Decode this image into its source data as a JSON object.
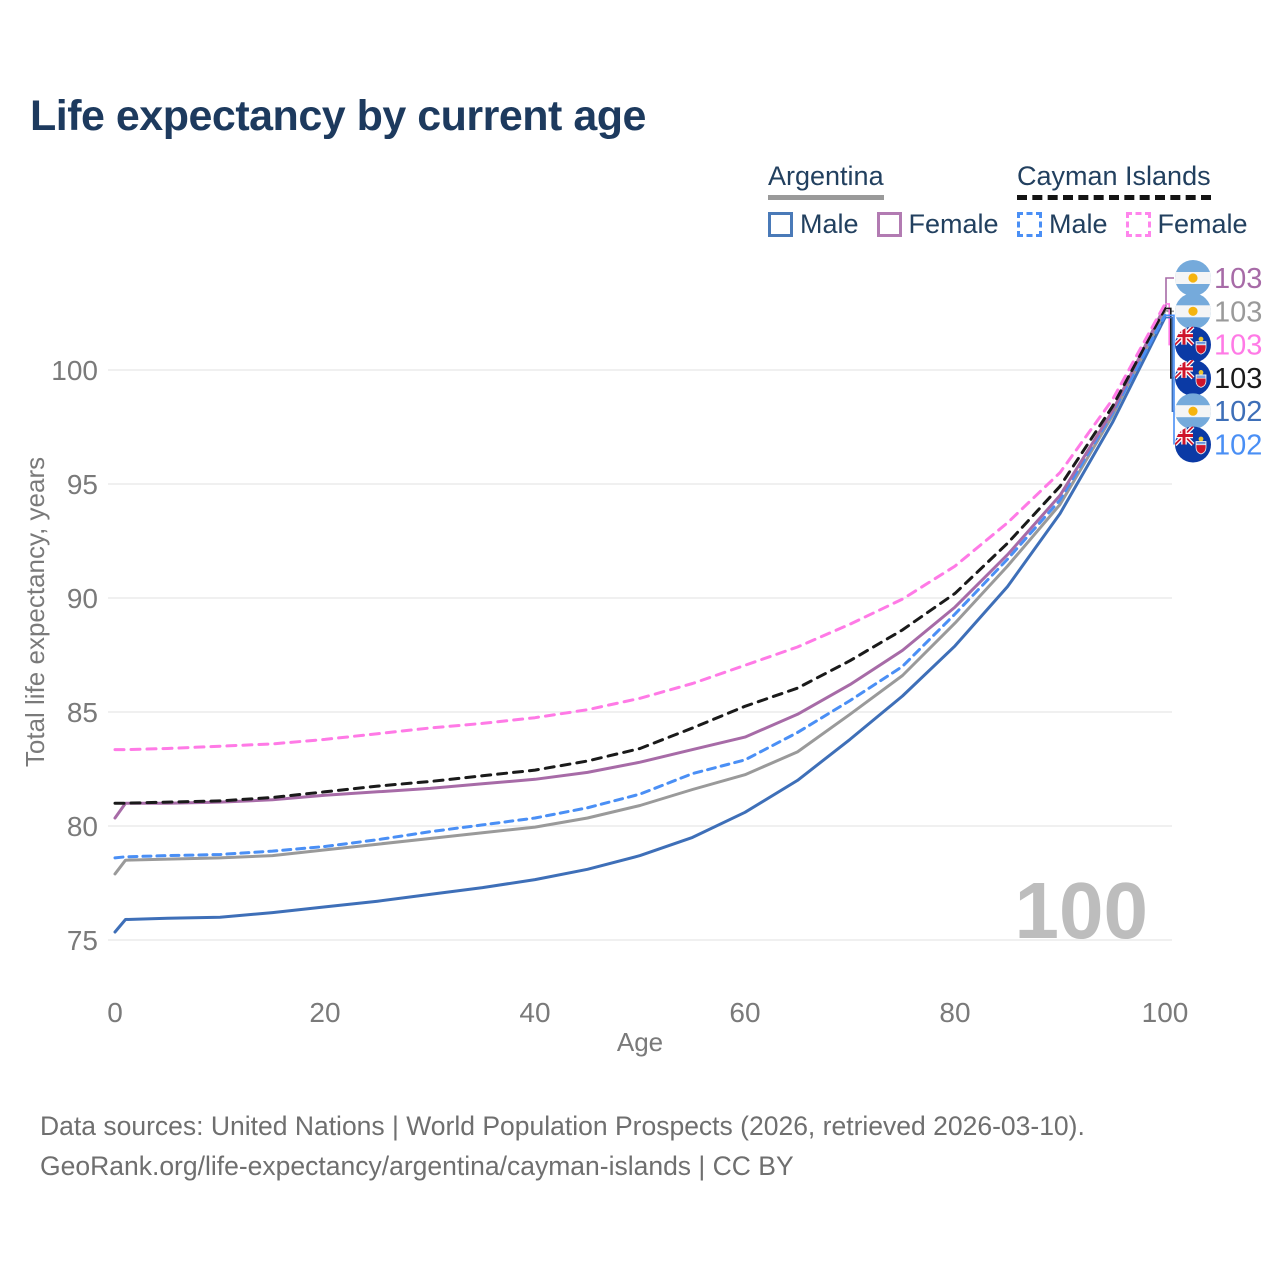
{
  "title": "Life expectancy by current age",
  "watermark_age": "100",
  "legend": {
    "groups": [
      {
        "id": "argentina",
        "name": "Argentina",
        "underline_color": "#9a9a9a",
        "underline_dash": false,
        "items": [
          {
            "id": "male",
            "label": "Male",
            "color": "#4a7ab8",
            "dash": false
          },
          {
            "id": "female",
            "label": "Female",
            "color": "#b27bb2",
            "dash": false
          }
        ]
      },
      {
        "id": "cayman-islands",
        "name": "Cayman Islands",
        "underline_color": "#141414",
        "underline_dash": true,
        "items": [
          {
            "id": "male",
            "label": "Male",
            "color": "#4a8ff5",
            "dash": true
          },
          {
            "id": "female",
            "label": "Female",
            "color": "#ff85ec",
            "dash": true
          }
        ]
      }
    ]
  },
  "chart_data": {
    "type": "line",
    "title": "Life expectancy by current age",
    "x_label": "Age",
    "y_label": "Total life expectancy, years",
    "x_ticks": [
      0,
      20,
      40,
      60,
      80,
      100
    ],
    "y_ticks": [
      75,
      80,
      85,
      90,
      95,
      100
    ],
    "x_range": [
      0,
      100
    ],
    "y_range": [
      75,
      103
    ],
    "grid": "horizontal-only",
    "legend_position": "top-right",
    "ages": [
      0,
      1,
      5,
      10,
      15,
      20,
      25,
      30,
      35,
      40,
      45,
      50,
      55,
      60,
      65,
      70,
      75,
      80,
      85,
      90,
      95,
      100
    ],
    "series": [
      {
        "id": "argentina-male",
        "name": "Argentina Male",
        "flag": "argentina",
        "color": "#3e6fb8",
        "dash": null,
        "end_label": "102",
        "values": [
          75.35,
          75.9,
          75.95,
          76.0,
          76.2,
          76.45,
          76.7,
          77.0,
          77.3,
          77.65,
          78.1,
          78.7,
          79.5,
          80.6,
          82.0,
          83.8,
          85.7,
          87.9,
          90.5,
          93.7,
          97.7,
          102.3
        ]
      },
      {
        "id": "argentina-total",
        "name": "Argentina",
        "flag": "argentina",
        "color": "#9a9a9a",
        "dash": null,
        "end_label": "103",
        "values": [
          77.9,
          78.5,
          78.55,
          78.6,
          78.7,
          78.95,
          79.2,
          79.45,
          79.7,
          79.95,
          80.35,
          80.9,
          81.6,
          82.25,
          83.25,
          84.9,
          86.6,
          88.9,
          91.4,
          94.1,
          98.0,
          102.6
        ]
      },
      {
        "id": "argentina-female",
        "name": "Argentina Female",
        "flag": "argentina",
        "color": "#a76ba7",
        "dash": null,
        "end_label": "103",
        "values": [
          80.35,
          81.0,
          81.0,
          81.05,
          81.15,
          81.35,
          81.5,
          81.65,
          81.85,
          82.05,
          82.35,
          82.8,
          83.35,
          83.9,
          84.9,
          86.2,
          87.7,
          89.6,
          91.9,
          94.5,
          98.2,
          102.8
        ]
      },
      {
        "id": "cayman-male",
        "name": "Cayman Islands Male",
        "flag": "cayman-islands",
        "color": "#4a8ff5",
        "dash": "8 6",
        "end_label": "102",
        "values": [
          78.6,
          78.65,
          78.7,
          78.75,
          78.9,
          79.1,
          79.4,
          79.75,
          80.05,
          80.35,
          80.8,
          81.4,
          82.3,
          82.9,
          84.1,
          85.5,
          87.0,
          89.3,
          91.7,
          94.3,
          98.1,
          102.4
        ]
      },
      {
        "id": "cayman-total",
        "name": "Cayman Islands",
        "flag": "cayman-islands",
        "color": "#1a1a1a",
        "dash": "9 7",
        "end_label": "103",
        "values": [
          81.0,
          81.0,
          81.05,
          81.1,
          81.25,
          81.5,
          81.75,
          81.95,
          82.2,
          82.45,
          82.85,
          83.4,
          84.3,
          85.25,
          86.05,
          87.25,
          88.6,
          90.2,
          92.4,
          94.9,
          98.4,
          102.7
        ]
      },
      {
        "id": "cayman-female",
        "name": "Cayman Islands Female",
        "flag": "cayman-islands",
        "color": "#ff7ae6",
        "dash": "9 7",
        "end_label": "103",
        "values": [
          83.35,
          83.35,
          83.4,
          83.5,
          83.6,
          83.8,
          84.05,
          84.3,
          84.5,
          84.75,
          85.1,
          85.6,
          86.25,
          87.05,
          87.85,
          88.85,
          89.95,
          91.4,
          93.3,
          95.5,
          98.7,
          102.9
        ]
      }
    ],
    "end_label_rows": [
      {
        "series": "argentina-female",
        "value": "103"
      },
      {
        "series": "argentina-total",
        "value": "103"
      },
      {
        "series": "cayman-female",
        "value": "103"
      },
      {
        "series": "cayman-total",
        "value": "103"
      },
      {
        "series": "argentina-male",
        "value": "102"
      },
      {
        "series": "cayman-male",
        "value": "102"
      }
    ]
  },
  "source_lines": [
    "Data sources: United Nations | World Population Prospects (2026, retrieved 2026-03-10).",
    "GeoRank.org/life-expectancy/argentina/cayman-islands | CC BY"
  ]
}
